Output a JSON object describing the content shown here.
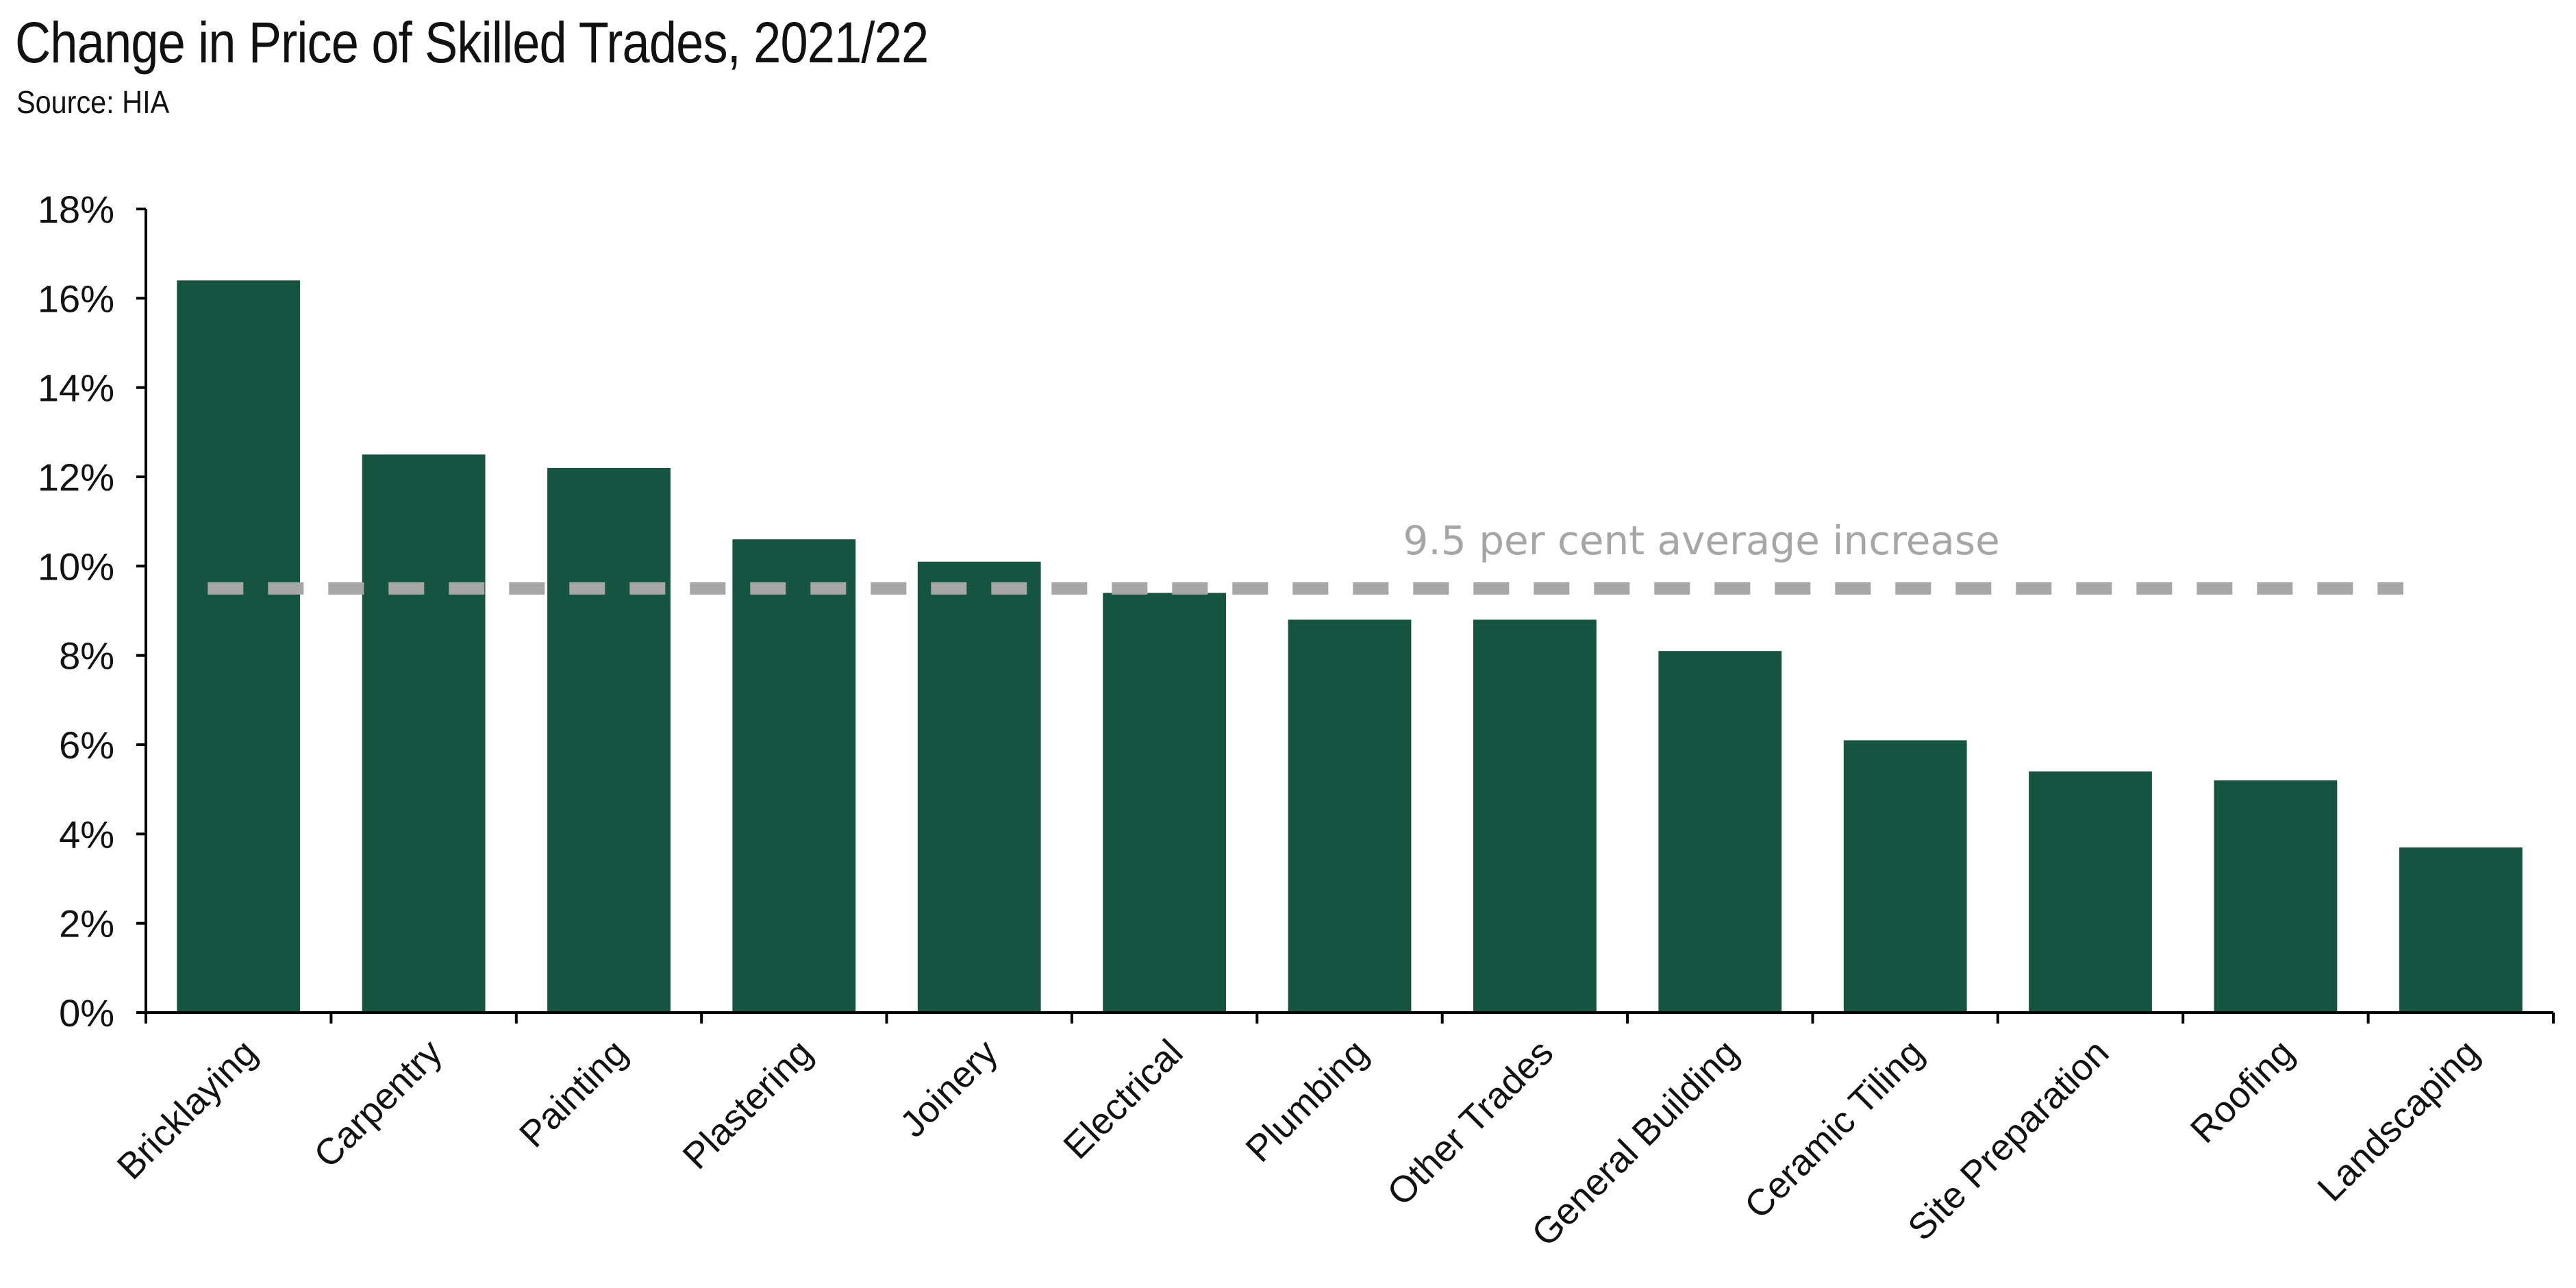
{
  "header": {
    "title": "Change in Price of Skilled Trades, 2021/22",
    "subtitle": "Source: HIA"
  },
  "colors": {
    "bar": "#145440",
    "average_line": "#a6a6a6",
    "axis": "#000000"
  },
  "chart_data": {
    "type": "bar",
    "title": "Change in Price of Skilled Trades, 2021/22",
    "subtitle": "Source: HIA",
    "xlabel": "",
    "ylabel": "",
    "categories": [
      "Bricklaying",
      "Carpentry",
      "Painting",
      "Plastering",
      "Joinery",
      "Electrical",
      "Plumbing",
      "Other Trades",
      "General Building",
      "Ceramic Tiling",
      "Site Preparation",
      "Roofing",
      "Landscaping"
    ],
    "values": [
      16.4,
      12.5,
      12.2,
      10.6,
      10.1,
      9.4,
      8.8,
      8.8,
      8.1,
      6.1,
      5.4,
      5.2,
      3.7
    ],
    "ylim": [
      0,
      18
    ],
    "yticks": [
      0,
      2,
      4,
      6,
      8,
      10,
      12,
      14,
      16,
      18
    ],
    "ytick_labels": [
      "0%",
      "2%",
      "4%",
      "6%",
      "8%",
      "10%",
      "12%",
      "14%",
      "16%",
      "18%"
    ],
    "grid": false,
    "legend": "none",
    "reference_line": {
      "value": 9.5,
      "style": "dashed",
      "label": "9.5 per cent average increase"
    }
  }
}
